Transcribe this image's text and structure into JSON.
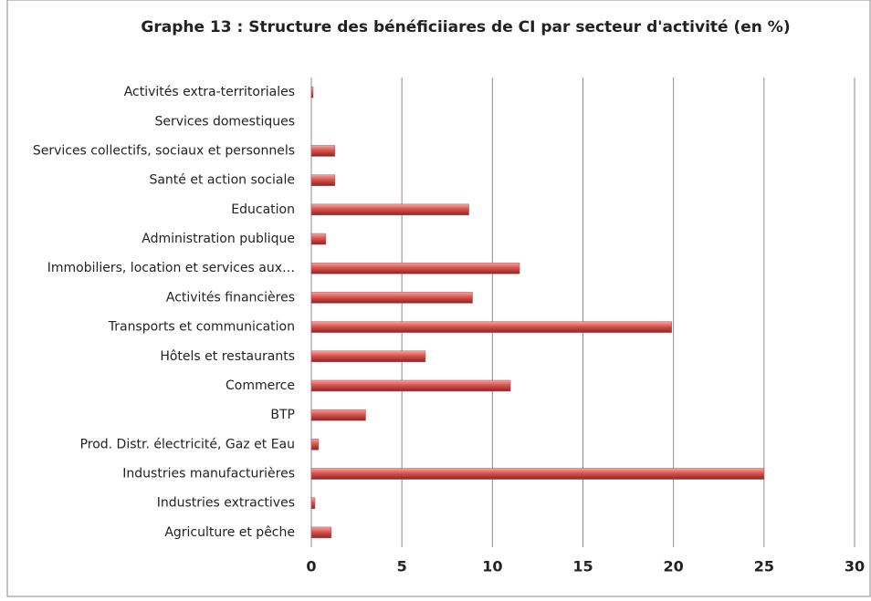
{
  "chart_data": {
    "type": "barh",
    "title": "Graphe 13 : Structure des bénéficiiares de CI par secteur d'activité (en %)",
    "categories": [
      "Agriculture et pêche",
      "Industries extractives",
      "Industries manufacturières",
      "Prod. Distr. électricité, Gaz et Eau",
      "BTP",
      "Commerce",
      "Hôtels et restaurants",
      "Transports et communication",
      "Activités financières",
      "Immobiliers, location et services aux…",
      "Administration publique",
      "Education",
      "Santé et action sociale",
      "Services collectifs, sociaux et personnels",
      "Services domestiques",
      "Activités extra-territoriales"
    ],
    "values": [
      1.1,
      0.2,
      25,
      0.4,
      3.0,
      11.0,
      6.3,
      19.9,
      8.9,
      11.5,
      0.8,
      8.7,
      1.3,
      1.3,
      0,
      0.1
    ],
    "color": "#c0504d",
    "xlim": [
      0,
      30
    ],
    "xticks": [
      0,
      5,
      10,
      15,
      20,
      25,
      30
    ],
    "grid": true
  }
}
